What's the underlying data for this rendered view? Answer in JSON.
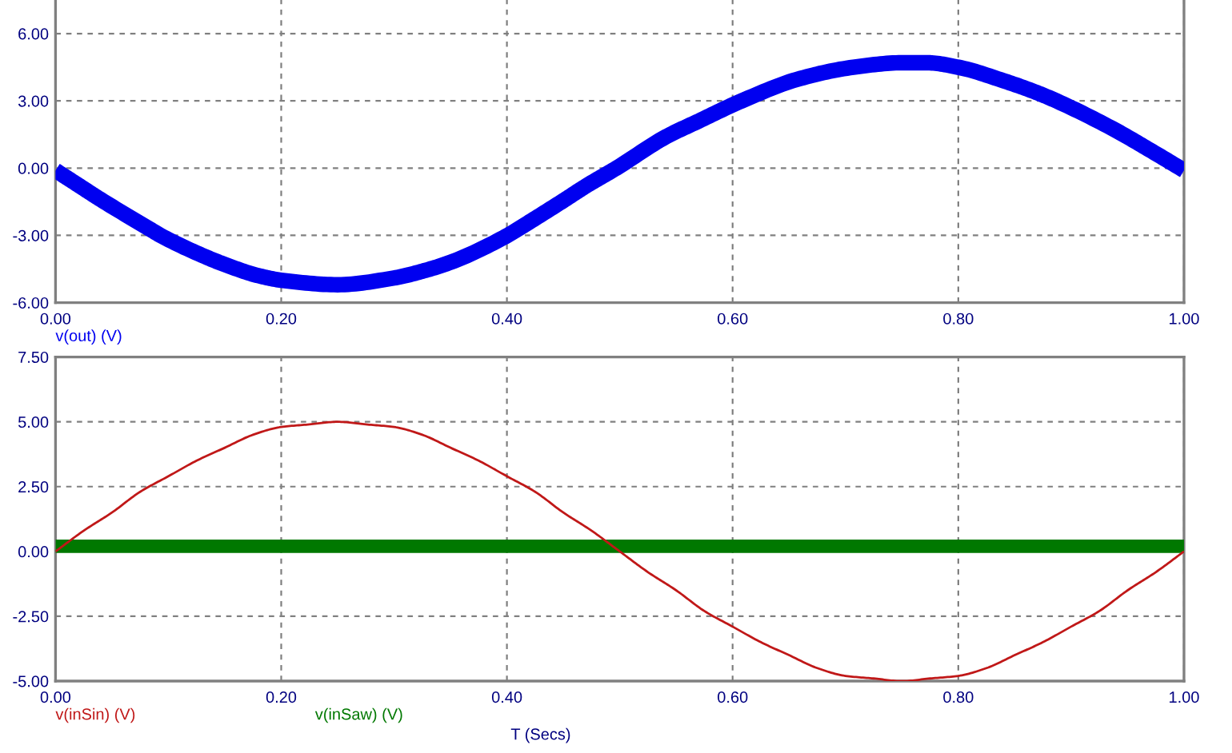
{
  "chart_data": [
    {
      "type": "line",
      "xlim": [
        0,
        1
      ],
      "ylim": [
        -6,
        7.5
      ],
      "xticks": [
        {
          "value": 0,
          "label": "0.00"
        },
        {
          "value": 0.2,
          "label": "0.20"
        },
        {
          "value": 0.4,
          "label": "0.40"
        },
        {
          "value": 0.6,
          "label": "0.60"
        },
        {
          "value": 0.8,
          "label": "0.80"
        },
        {
          "value": 1,
          "label": "1.00"
        }
      ],
      "yticks": [
        {
          "value": 6,
          "label": "6.00"
        },
        {
          "value": 3,
          "label": "3.00"
        },
        {
          "value": 0,
          "label": "0.00"
        },
        {
          "value": -3,
          "label": "-3.00"
        },
        {
          "value": -6,
          "label": "-6.00"
        }
      ],
      "grid": true,
      "legend": "bottom",
      "series": [
        {
          "name": "v(out) (V)",
          "color": "#0000f0",
          "x": [
            0,
            0.02,
            0.04,
            0.083,
            0.093,
            0.135,
            0.15,
            0.18,
            0.2,
            0.25,
            0.3,
            0.325,
            0.35,
            0.397,
            0.42,
            0.45,
            0.47,
            0.497,
            0.541,
            0.57,
            0.608,
            0.66,
            0.707,
            0.75,
            0.773,
            0.8,
            0.84,
            0.868,
            0.887,
            0.939,
            0.97,
            1
          ],
          "values": [
            -0.1,
            -0.75,
            -1.4,
            -2.7,
            -3.0,
            -4.0,
            -4.3,
            -4.8,
            -5.0,
            -5.2,
            -4.9,
            -4.6,
            -4.2,
            -3.1,
            -2.4,
            -1.45,
            -0.8,
            0.0,
            1.4,
            2.1,
            3.0,
            4.0,
            4.5,
            4.7,
            4.7,
            4.5,
            3.9,
            3.4,
            3.0,
            1.7,
            0.8,
            -0.1
          ]
        }
      ]
    },
    {
      "type": "line",
      "xlabel": "T (Secs)",
      "xlim": [
        0,
        1
      ],
      "ylim": [
        -5,
        7.5
      ],
      "xticks": [
        {
          "value": 0,
          "label": "0.00"
        },
        {
          "value": 0.2,
          "label": "0.20"
        },
        {
          "value": 0.4,
          "label": "0.40"
        },
        {
          "value": 0.6,
          "label": "0.60"
        },
        {
          "value": 0.8,
          "label": "0.80"
        },
        {
          "value": 1,
          "label": "1.00"
        }
      ],
      "yticks": [
        {
          "value": 7.5,
          "label": "7.50"
        },
        {
          "value": 5,
          "label": "5.00"
        },
        {
          "value": 2.5,
          "label": "2.50"
        },
        {
          "value": 0,
          "label": "0.00"
        },
        {
          "value": -2.5,
          "label": "-2.50"
        },
        {
          "value": -5,
          "label": "-5.00"
        }
      ],
      "grid": true,
      "legend": "bottom",
      "series": [
        {
          "name": "v(inSin) (V)",
          "color": "#c01818",
          "x": [
            0,
            0.025,
            0.05,
            0.075,
            0.1,
            0.125,
            0.15,
            0.175,
            0.2,
            0.225,
            0.25,
            0.275,
            0.3,
            0.325,
            0.35,
            0.375,
            0.4,
            0.425,
            0.45,
            0.475,
            0.5,
            0.525,
            0.55,
            0.575,
            0.6,
            0.625,
            0.65,
            0.675,
            0.7,
            0.725,
            0.75,
            0.775,
            0.8,
            0.825,
            0.85,
            0.875,
            0.9,
            0.925,
            0.95,
            0.975,
            1
          ],
          "values": [
            0,
            0.8,
            1.5,
            2.3,
            2.9,
            3.5,
            4.0,
            4.5,
            4.8,
            4.9,
            5.0,
            4.9,
            4.8,
            4.5,
            4.0,
            3.5,
            2.9,
            2.3,
            1.5,
            0.8,
            0,
            -0.8,
            -1.5,
            -2.3,
            -2.9,
            -3.5,
            -4.0,
            -4.5,
            -4.8,
            -4.9,
            -5.0,
            -4.9,
            -4.8,
            -4.5,
            -4.0,
            -3.5,
            -2.9,
            -2.3,
            -1.5,
            -0.8,
            0
          ]
        },
        {
          "name": "v(inSaw) (V)",
          "color": "#007800",
          "x": [
            0,
            1
          ],
          "values": [
            0.2,
            0.2
          ]
        }
      ]
    }
  ]
}
